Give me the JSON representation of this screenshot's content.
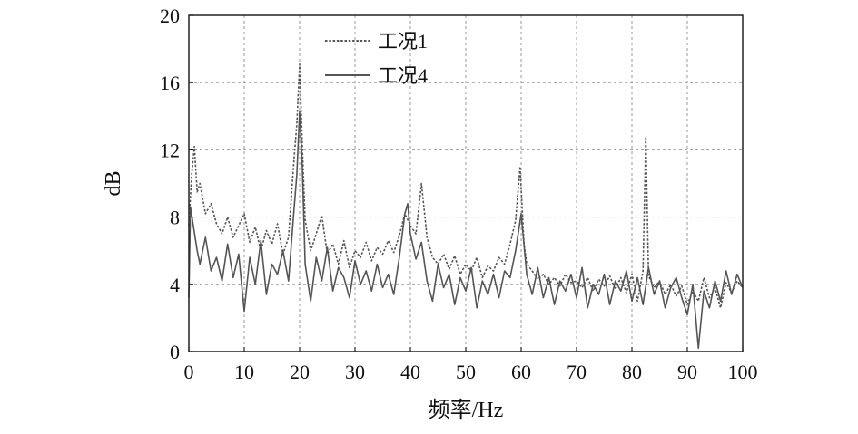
{
  "chart_data": {
    "type": "line",
    "title": "",
    "xlabel": "频率/Hz",
    "ylabel": "dB",
    "xlim": [
      0,
      100
    ],
    "ylim": [
      0,
      20
    ],
    "xticks": [
      "0",
      "10",
      "20",
      "30",
      "40",
      "50",
      "60",
      "70",
      "80",
      "90",
      "100"
    ],
    "yticks": [
      "0",
      "4",
      "8",
      "12",
      "16",
      "20"
    ],
    "grid": true,
    "legend_position": "top-center",
    "series": [
      {
        "name": "工况1",
        "style": "dotted",
        "color": "#555555",
        "x": [
          0,
          0.5,
          1,
          1.5,
          2,
          3,
          4,
          5,
          6,
          7,
          8,
          9,
          10,
          11,
          12,
          13,
          14,
          15,
          16,
          17,
          18,
          19,
          19.5,
          20,
          20.5,
          21,
          22,
          23,
          24,
          25,
          26,
          27,
          28,
          29,
          30,
          31,
          32,
          33,
          34,
          35,
          36,
          37,
          38,
          39,
          40,
          41,
          42,
          43,
          44,
          45,
          46,
          47,
          48,
          49,
          50,
          51,
          52,
          53,
          54,
          55,
          56,
          57,
          58,
          59,
          59.8,
          60.5,
          61,
          62,
          63,
          64,
          65,
          66,
          67,
          68,
          69,
          70,
          71,
          72,
          73,
          74,
          75,
          76,
          77,
          78,
          79,
          80,
          81,
          82,
          82.5,
          83,
          84,
          85,
          86,
          87,
          88,
          89,
          90,
          91,
          92,
          93,
          94,
          95,
          96,
          97,
          98,
          99,
          100
        ],
        "values": [
          7.5,
          10.5,
          12.2,
          9.5,
          10.0,
          8.2,
          8.8,
          7.6,
          7.0,
          8.0,
          6.8,
          7.5,
          8.2,
          6.5,
          7.4,
          6.0,
          7.2,
          6.4,
          7.6,
          5.8,
          6.8,
          11.5,
          13.5,
          17.1,
          12.0,
          7.8,
          6.0,
          7.0,
          8.1,
          5.8,
          6.4,
          5.2,
          6.6,
          5.0,
          6.0,
          5.6,
          6.5,
          5.4,
          6.2,
          5.8,
          6.6,
          5.9,
          6.9,
          8.2,
          7.5,
          7.0,
          10.0,
          6.8,
          5.6,
          5.2,
          5.8,
          4.9,
          5.7,
          4.6,
          5.2,
          4.8,
          5.6,
          4.4,
          5.1,
          4.8,
          5.6,
          5.2,
          6.4,
          7.8,
          11.0,
          6.5,
          5.2,
          4.8,
          4.3,
          4.6,
          4.0,
          4.4,
          3.9,
          4.6,
          4.1,
          4.2,
          3.8,
          4.4,
          3.6,
          4.3,
          3.9,
          4.5,
          3.7,
          4.4,
          3.5,
          4.6,
          3.0,
          4.8,
          12.8,
          4.5,
          3.8,
          4.2,
          3.4,
          4.0,
          3.3,
          3.9,
          2.8,
          3.6,
          3.0,
          4.4,
          3.2,
          3.8,
          2.6,
          4.1,
          3.5,
          4.2,
          3.8
        ]
      },
      {
        "name": "工况4",
        "style": "solid",
        "color": "#555555",
        "x": [
          0,
          0.3,
          0.8,
          1.5,
          2,
          3,
          4,
          5,
          6,
          7,
          8,
          9,
          10,
          11,
          12,
          13,
          14,
          15,
          16,
          17,
          18,
          19,
          19.5,
          20,
          20.5,
          21,
          22,
          23,
          24,
          25,
          26,
          27,
          28,
          29,
          30,
          31,
          32,
          33,
          34,
          35,
          36,
          37,
          38,
          39,
          39.5,
          40,
          41,
          42,
          43,
          44,
          45,
          46,
          47,
          48,
          49,
          50,
          51,
          52,
          53,
          54,
          55,
          56,
          57,
          58,
          59,
          60,
          61,
          62,
          63,
          64,
          65,
          66,
          67,
          68,
          69,
          70,
          71,
          72,
          73,
          74,
          75,
          76,
          77,
          78,
          79,
          80,
          81,
          82,
          83,
          84,
          85,
          86,
          87,
          88,
          89,
          90,
          91,
          92,
          93,
          94,
          95,
          96,
          97,
          98,
          99,
          100
        ],
        "values": [
          3.2,
          8.6,
          7.5,
          6.0,
          5.2,
          6.8,
          4.8,
          5.6,
          4.2,
          6.4,
          4.4,
          5.8,
          2.4,
          5.6,
          4.0,
          6.6,
          3.4,
          5.2,
          4.6,
          6.0,
          4.2,
          8.5,
          10.5,
          14.3,
          10.8,
          5.2,
          3.0,
          5.6,
          4.2,
          6.2,
          3.6,
          5.0,
          4.4,
          3.2,
          5.4,
          4.0,
          4.8,
          3.6,
          5.2,
          3.8,
          4.6,
          3.4,
          5.6,
          8.2,
          8.8,
          7.0,
          5.5,
          6.5,
          4.2,
          3.0,
          5.2,
          3.8,
          4.6,
          2.8,
          4.4,
          3.6,
          5.0,
          2.6,
          4.2,
          3.4,
          4.6,
          3.2,
          4.8,
          4.4,
          6.0,
          8.2,
          4.6,
          3.4,
          5.0,
          3.2,
          4.4,
          2.8,
          4.2,
          3.6,
          4.6,
          3.2,
          5.0,
          2.6,
          4.0,
          3.4,
          4.6,
          2.8,
          4.2,
          3.6,
          4.8,
          3.0,
          4.4,
          2.8,
          5.0,
          3.4,
          4.2,
          2.6,
          3.8,
          4.4,
          3.2,
          2.2,
          4.0,
          0.2,
          3.6,
          2.6,
          4.2,
          3.0,
          4.8,
          3.4,
          4.6,
          3.8
        ]
      }
    ]
  }
}
